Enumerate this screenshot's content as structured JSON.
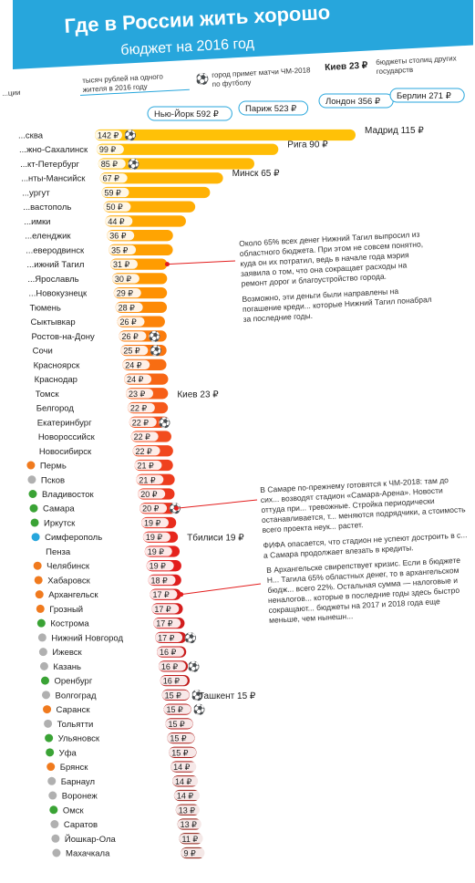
{
  "header": {
    "title": "Где в России жить хорошо",
    "subtitle": "бюджет на 2016 год",
    "background_color": "#27a6dc"
  },
  "legend": {
    "left_fragment": "...ции",
    "rubles_label": "тысяч рублей на одного жителя в 2016 году",
    "ball_label": "город примет матчи ЧМ-2018 по футболу",
    "kiev_value": "Киев 23 ₽",
    "capitals_label": "бюджеты столиц других государств"
  },
  "notes": {
    "tagil": [
      "Около 65% всех денег Нижний Тагил выпросил из областного бюджета. При этом не совсем понятно, куда он их потратил, ведь в начале года мэрия заявила о том, что она сокращает расходы на ремонт дорог и благоустройство города.",
      "Возможно, эти деньги были направлены на погашение креди... которые Нижний Тагил понабрал за последние годы."
    ],
    "samara": [
      "В Самаре по-прежнему готовятся к ЧМ-2018: там до сих... возводят стадион «Самара-Арена». Новости оттуда при... тревожные. Стройка периодически останавливается, т... меняются подрядчики, а стоимость всего проекта неук... растет.",
      "ФИФА опасается, что стадион не успеют достроить в с... а Самара продолжает влезать в кредиты."
    ],
    "arkhangelsk": [
      "В Архангельске свирепствует кризис. Если в бюджете Н... Тагила 65% областных денег, то в архангельском бюдж... всего 22%. Остальная сумма — налоговые и неналогов... которые в последние годы здесь быстро сокращают... бюджеты на 2017 и 2018 года еще меньше, чем нынешн..."
    ]
  },
  "chart_data": {
    "type": "bar",
    "unit": "₽",
    "cities": [
      {
        "name": "...сква",
        "value": 142,
        "ball": true,
        "badge": null
      },
      {
        "name": "...жно-Сахалинск",
        "value": 99,
        "ball": false,
        "badge": null
      },
      {
        "name": "...кт-Петербург",
        "value": 85,
        "ball": true,
        "badge": null
      },
      {
        "name": "...нты-Мансийск",
        "value": 67,
        "ball": false,
        "badge": null
      },
      {
        "name": "...ургут",
        "value": 59,
        "ball": false,
        "badge": null
      },
      {
        "name": "...вастополь",
        "value": 50,
        "ball": false,
        "badge": null
      },
      {
        "name": "...имки",
        "value": 44,
        "ball": false,
        "badge": null
      },
      {
        "name": "...еленджик",
        "value": 36,
        "ball": false,
        "badge": null
      },
      {
        "name": "...еверодвинск",
        "value": 35,
        "ball": false,
        "badge": null
      },
      {
        "name": "...ижний Тагил",
        "value": 31,
        "ball": false,
        "badge": null
      },
      {
        "name": "...Ярославль",
        "value": 30,
        "ball": false,
        "badge": null
      },
      {
        "name": "...Новокузнецк",
        "value": 29,
        "ball": false,
        "badge": null
      },
      {
        "name": "Тюмень",
        "value": 28,
        "ball": false,
        "badge": null
      },
      {
        "name": "Сыктывкар",
        "value": 26,
        "ball": false,
        "badge": null
      },
      {
        "name": "Ростов-на-Дону",
        "value": 26,
        "ball": true,
        "badge": null
      },
      {
        "name": "Сочи",
        "value": 25,
        "ball": true,
        "badge": null
      },
      {
        "name": "Красноярск",
        "value": 24,
        "ball": false,
        "badge": null
      },
      {
        "name": "Краснодар",
        "value": 24,
        "ball": false,
        "badge": null
      },
      {
        "name": "Томск",
        "value": 23,
        "ball": false,
        "badge": null
      },
      {
        "name": "Белгород",
        "value": 22,
        "ball": false,
        "badge": null
      },
      {
        "name": "Екатеринбург",
        "value": 22,
        "ball": true,
        "badge": null
      },
      {
        "name": "Новороссийск",
        "value": 22,
        "ball": false,
        "badge": null
      },
      {
        "name": "Новосибирск",
        "value": 22,
        "ball": false,
        "badge": null
      },
      {
        "name": "Пермь",
        "value": 21,
        "ball": false,
        "badge": "orange"
      },
      {
        "name": "Псков",
        "value": 21,
        "ball": false,
        "badge": "grey"
      },
      {
        "name": "Владивосток",
        "value": 20,
        "ball": false,
        "badge": "green"
      },
      {
        "name": "Самара",
        "value": 20,
        "ball": true,
        "badge": "green"
      },
      {
        "name": "Иркутск",
        "value": 19,
        "ball": false,
        "badge": "green"
      },
      {
        "name": "Симферополь",
        "value": 19,
        "ball": false,
        "badge": "blue"
      },
      {
        "name": "Пенза",
        "value": 19,
        "ball": false,
        "badge": null
      },
      {
        "name": "Челябинск",
        "value": 19,
        "ball": false,
        "badge": "orange"
      },
      {
        "name": "Хабаровск",
        "value": 18,
        "ball": false,
        "badge": "orange"
      },
      {
        "name": "Архангельск",
        "value": 17,
        "ball": false,
        "badge": "orange"
      },
      {
        "name": "Грозный",
        "value": 17,
        "ball": false,
        "badge": "orange"
      },
      {
        "name": "Кострома",
        "value": 17,
        "ball": false,
        "badge": "green"
      },
      {
        "name": "Нижний Новгород",
        "value": 17,
        "ball": true,
        "badge": "grey"
      },
      {
        "name": "Ижевск",
        "value": 16,
        "ball": false,
        "badge": "grey"
      },
      {
        "name": "Казань",
        "value": 16,
        "ball": true,
        "badge": "grey"
      },
      {
        "name": "Оренбург",
        "value": 16,
        "ball": false,
        "badge": "green"
      },
      {
        "name": "Волгоград",
        "value": 15,
        "ball": true,
        "badge": "grey"
      },
      {
        "name": "Саранск",
        "value": 15,
        "ball": true,
        "badge": "orange"
      },
      {
        "name": "Тольятти",
        "value": 15,
        "ball": false,
        "badge": "grey"
      },
      {
        "name": "Ульяновск",
        "value": 15,
        "ball": false,
        "badge": "green"
      },
      {
        "name": "Уфа",
        "value": 15,
        "ball": false,
        "badge": "green"
      },
      {
        "name": "Брянск",
        "value": 14,
        "ball": false,
        "badge": "orange"
      },
      {
        "name": "Барнаул",
        "value": 14,
        "ball": false,
        "badge": "grey"
      },
      {
        "name": "Воронеж",
        "value": 14,
        "ball": false,
        "badge": "grey"
      },
      {
        "name": "Омск",
        "value": 13,
        "ball": false,
        "badge": "green"
      },
      {
        "name": "Саратов",
        "value": 13,
        "ball": false,
        "badge": "grey"
      },
      {
        "name": "Йошкар-Ола",
        "value": 11,
        "ball": false,
        "badge": "grey"
      },
      {
        "name": "Махачкала",
        "value": 9,
        "ball": false,
        "badge": "grey"
      }
    ],
    "capitals": [
      {
        "label": "Нью-Йорк 592 ₽",
        "pill": true,
        "row": -1
      },
      {
        "label": "Париж 523 ₽",
        "pill": true,
        "row": -1
      },
      {
        "label": "Лондон 356 ₽",
        "pill": true,
        "row": -1
      },
      {
        "label": "Берлин 271 ₽",
        "pill": true,
        "row": -1
      },
      {
        "label": "Мадрид 115 ₽",
        "pill": false,
        "row": 0
      },
      {
        "label": "Рига 90 ₽",
        "pill": false,
        "row": 1
      },
      {
        "label": "Минск 65 ₽",
        "pill": false,
        "row": 3
      },
      {
        "label": "Киев 23 ₽",
        "pill": false,
        "row": 18
      },
      {
        "label": "Тбилиси 19 ₽",
        "pill": false,
        "row": 28
      },
      {
        "label": "Ташкент 15 ₽",
        "pill": false,
        "row": 39
      }
    ],
    "badge_colors": {
      "orange": "#f07a1e",
      "green": "#3aa335",
      "grey": "#b0b0b0",
      "blue": "#27a6dc"
    },
    "bar_colors": [
      "#ffc107",
      "#ff9800",
      "#f4511e",
      "#e31d1d",
      "#b71c1c",
      "#8b1a0e"
    ],
    "grid": false,
    "legend_position": "top"
  }
}
